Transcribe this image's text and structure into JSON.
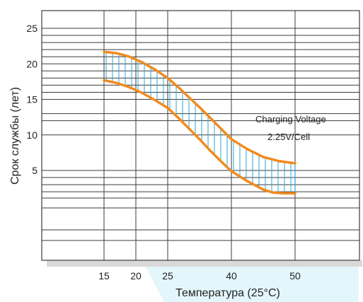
{
  "chart_data": {
    "type": "area",
    "xlabel": "Температура (25°C)",
    "ylabel": "Срок службы (лет)",
    "x_ticks": [
      15,
      20,
      25,
      40,
      50
    ],
    "y_ticks": [
      25,
      20,
      15,
      10,
      5
    ],
    "annotation": {
      "line1": "Charging Voltage",
      "line2": "2.25V/Cell"
    },
    "series": [
      {
        "role": "upper",
        "x": [
          15,
          17,
          19,
          21,
          23,
          25,
          27.5,
          30,
          32.5,
          35,
          37.5,
          40,
          42.5,
          45,
          47.5,
          50
        ],
        "y": [
          21.7,
          21.5,
          21.0,
          20.2,
          19.2,
          18.0,
          16.7,
          15.3,
          13.9,
          12.4,
          10.9,
          9.4,
          8.0,
          6.9,
          6.3,
          6.0
        ]
      },
      {
        "role": "lower",
        "x": [
          15,
          17,
          19,
          21,
          23,
          25,
          27.5,
          30,
          32.5,
          35,
          37.5,
          40,
          42.5,
          45,
          46.5,
          48,
          50
        ],
        "y": [
          17.7,
          17.3,
          16.7,
          15.9,
          14.9,
          13.8,
          12.4,
          10.9,
          9.4,
          7.8,
          6.3,
          4.9,
          3.5,
          2.3,
          1.9,
          1.8,
          1.8
        ]
      }
    ],
    "colors": {
      "curve": "#f28a1e",
      "hatch": "#2ba6d6",
      "grid": "#3b3b3b",
      "x_band": "#e3f6fb",
      "frame_shadow": "#d8d8d8"
    },
    "grid": true
  }
}
